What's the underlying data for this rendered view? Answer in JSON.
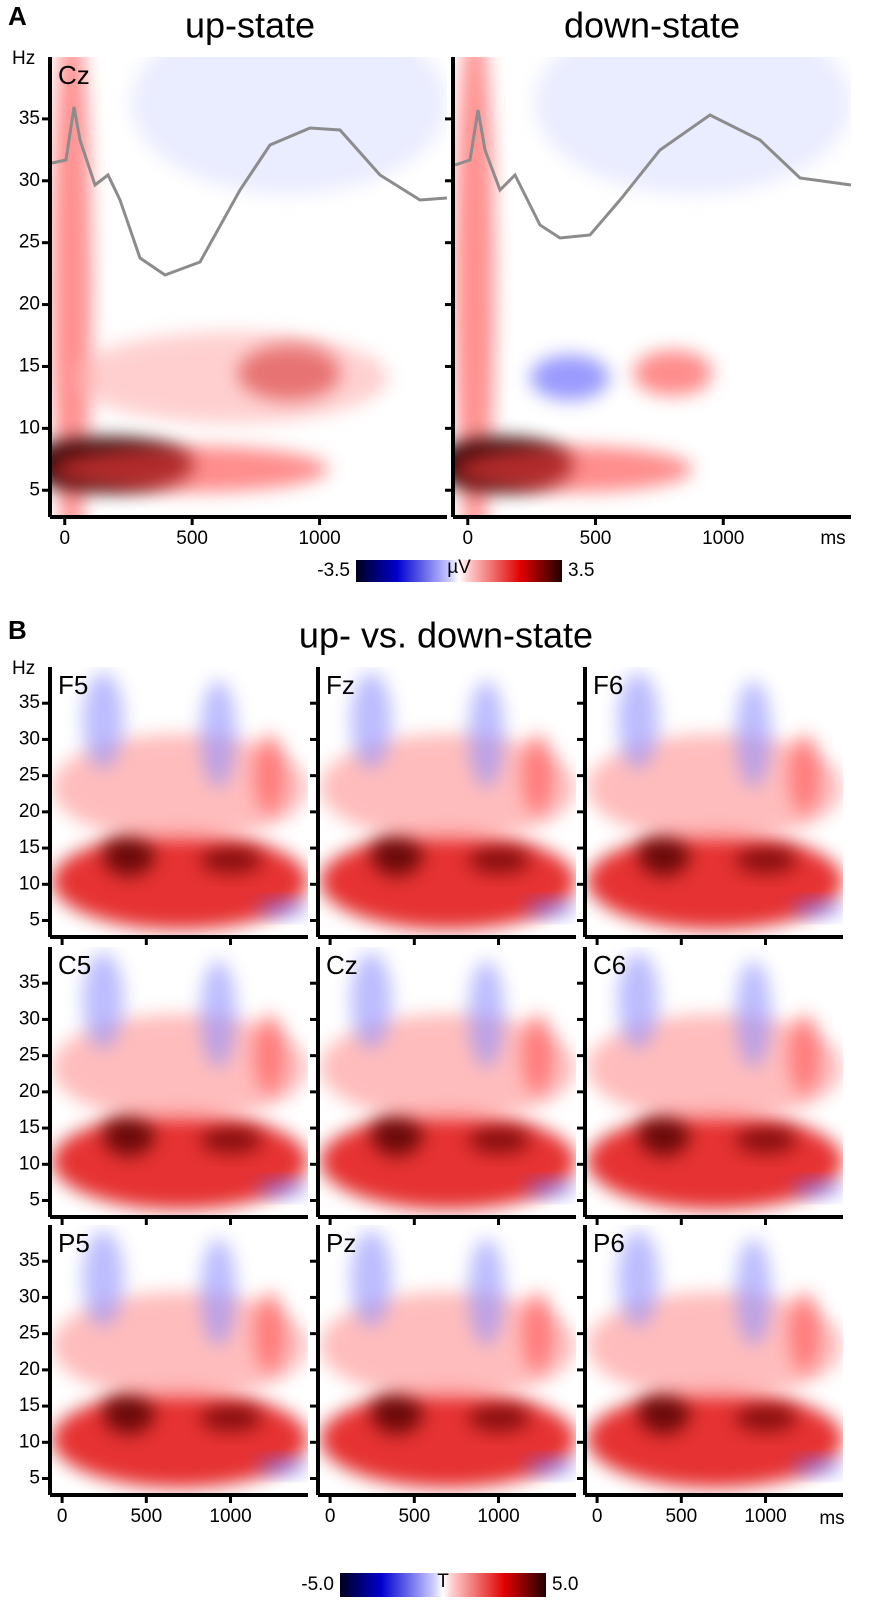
{
  "panel_a": {
    "label": "A",
    "titles": [
      "up-state",
      "down-state"
    ],
    "electrode": "Cz",
    "y_unit": "Hz",
    "x_unit": "ms",
    "ylim": [
      3,
      40
    ],
    "yticks": [
      5,
      10,
      15,
      20,
      25,
      30,
      35
    ],
    "xlim": [
      -50,
      1500
    ],
    "xticks": [
      0,
      500,
      1000
    ],
    "colorbar": {
      "ticks": [
        -3.5,
        3.5
      ],
      "unit": "µV"
    }
  },
  "panel_b": {
    "label": "B",
    "title": "up- vs. down-state",
    "electrodes": [
      "F5",
      "Fz",
      "F6",
      "C5",
      "Cz",
      "C6",
      "P5",
      "Pz",
      "P6"
    ],
    "y_unit": "Hz",
    "x_unit": "ms",
    "ylim": [
      3,
      40
    ],
    "yticks": [
      5,
      10,
      15,
      20,
      25,
      30,
      35
    ],
    "xlim": [
      -60,
      1460
    ],
    "xticks": [
      0,
      500,
      1000
    ],
    "colorbar": {
      "ticks": [
        {
          "value": -5,
          "label": "-5.0"
        },
        {
          "value": 5,
          "label": "5.0"
        }
      ],
      "unit": "T"
    }
  }
}
